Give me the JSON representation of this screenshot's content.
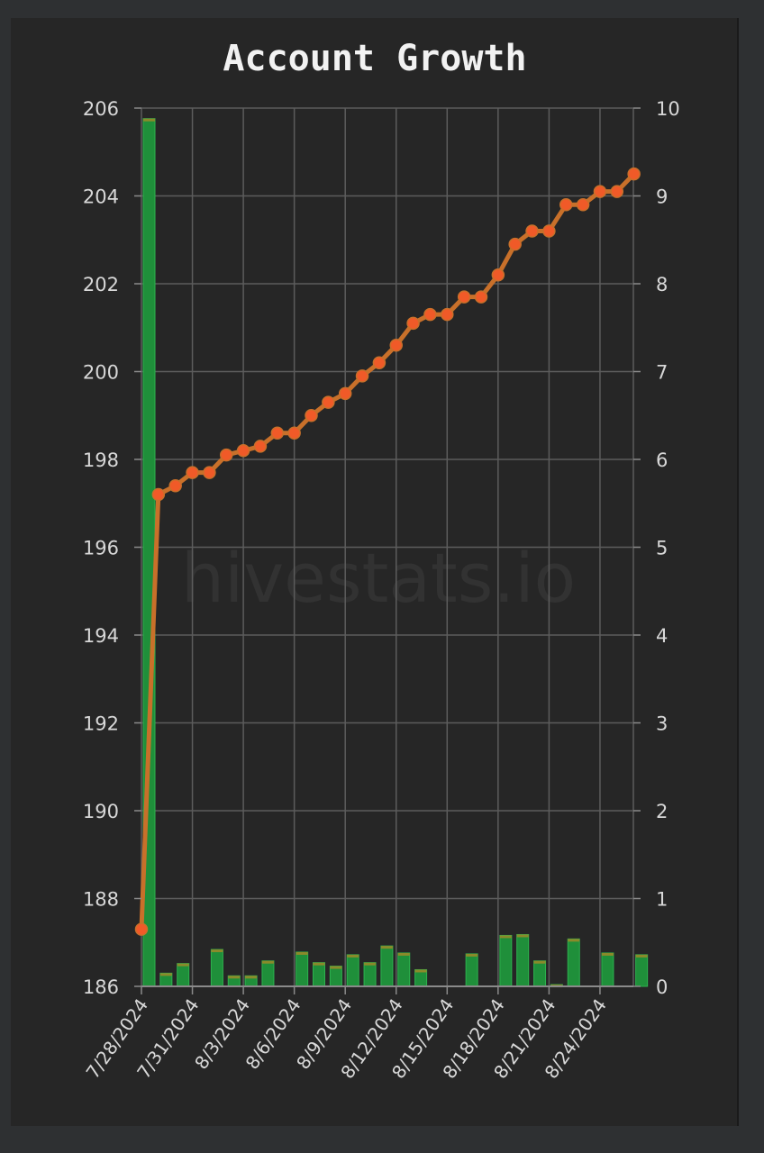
{
  "chart_data": {
    "title": "Account Growth",
    "watermark": "hivestats.io",
    "type": "line+bar",
    "x": [
      "7/28/2024",
      "7/29/2024",
      "7/30/2024",
      "7/31/2024",
      "8/1/2024",
      "8/2/2024",
      "8/3/2024",
      "8/4/2024",
      "8/5/2024",
      "8/6/2024",
      "8/7/2024",
      "8/8/2024",
      "8/9/2024",
      "8/10/2024",
      "8/11/2024",
      "8/12/2024",
      "8/13/2024",
      "8/14/2024",
      "8/15/2024",
      "8/16/2024",
      "8/17/2024",
      "8/18/2024",
      "8/19/2024",
      "8/20/2024",
      "8/21/2024",
      "8/22/2024",
      "8/23/2024",
      "8/24/2024",
      "8/25/2024",
      "8/26/2024"
    ],
    "x_tick_labels": [
      "7/28/2024",
      "7/31/2024",
      "8/3/2024",
      "8/6/2024",
      "8/9/2024",
      "8/12/2024",
      "8/15/2024",
      "8/18/2024",
      "8/21/2024",
      "8/24/2024"
    ],
    "y_left": {
      "min": 186,
      "max": 206,
      "ticks": [
        "206",
        "204",
        "202",
        "200",
        "198",
        "196",
        "194",
        "192",
        "190",
        "188",
        "186"
      ]
    },
    "y_right": {
      "min": 0,
      "max": 10,
      "ticks": [
        "10",
        "9",
        "8",
        "7",
        "6",
        "5",
        "4",
        "3",
        "2",
        "1",
        "0"
      ]
    },
    "series": [
      {
        "kind": "line",
        "axis": "left",
        "color": "#c8702a",
        "marker_color": "#f05a28",
        "values": [
          187.3,
          197.2,
          197.4,
          197.7,
          197.7,
          198.1,
          198.2,
          198.3,
          198.6,
          198.6,
          199.0,
          199.3,
          199.5,
          199.9,
          200.2,
          200.6,
          201.1,
          201.3,
          201.3,
          201.7,
          201.7,
          202.2,
          202.9,
          203.2,
          203.2,
          203.8,
          203.8,
          204.1,
          204.1,
          204.5
        ]
      },
      {
        "kind": "bar",
        "axis": "right",
        "color": "#1f8f3a",
        "cap_color": "#8a8a2a",
        "values": [
          9.88,
          0.15,
          0.26,
          0,
          0.42,
          0.12,
          0.12,
          0.29,
          0,
          0.39,
          0.27,
          0.23,
          0.36,
          0.27,
          0.46,
          0.38,
          0.19,
          0,
          0,
          0.37,
          0,
          0.58,
          0.59,
          0.29,
          0.02,
          0.54,
          0,
          0.38,
          0,
          0.36
        ]
      }
    ],
    "grid": true,
    "legend": "none"
  }
}
